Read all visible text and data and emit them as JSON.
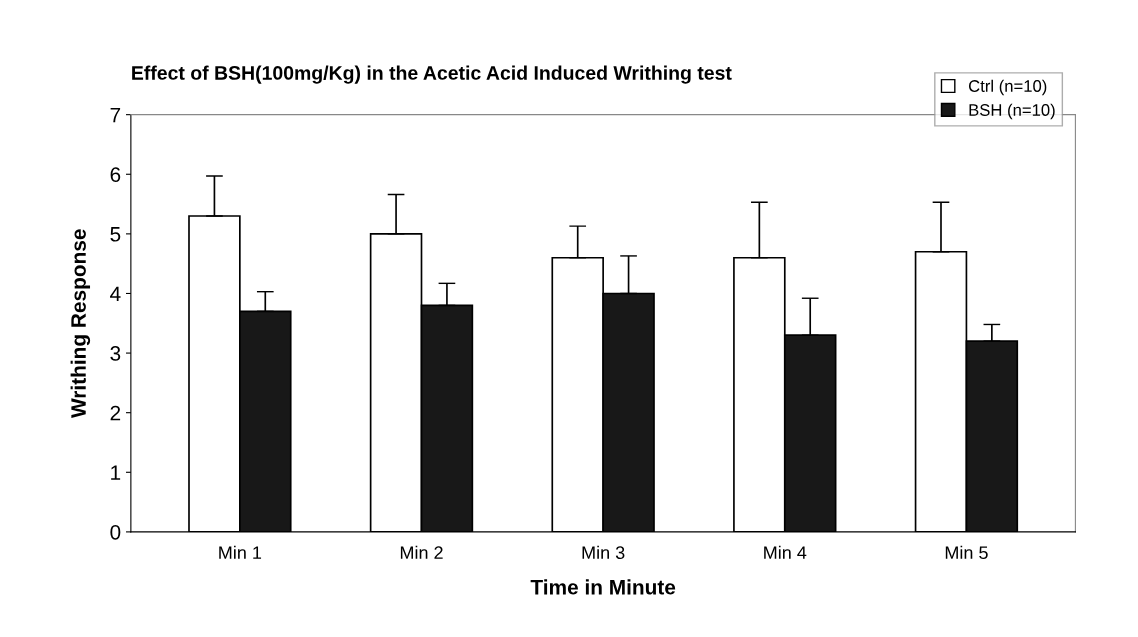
{
  "chart_data": {
    "type": "bar",
    "title": "Effect of BSH(100mg/Kg) in the Acetic Acid Induced Writhing test",
    "xlabel": "Time in Minute",
    "ylabel": "Writhing Response",
    "categories": [
      "Min 1",
      "Min 2",
      "Min 3",
      "Min 4",
      "Min 5"
    ],
    "series": [
      {
        "name": "Ctrl (n=10)",
        "color": "#ffffff",
        "values": [
          5.3,
          5.0,
          4.6,
          4.6,
          4.7
        ],
        "errors": [
          [
            5.3,
            5.97
          ],
          [
            5.0,
            5.66
          ],
          [
            4.6,
            5.13
          ],
          [
            4.6,
            5.53
          ],
          [
            4.7,
            5.53
          ]
        ]
      },
      {
        "name": "BSH (n=10)",
        "color": "#181818",
        "values": [
          3.7,
          3.8,
          4.0,
          3.3,
          3.2
        ],
        "errors": [
          [
            3.7,
            4.03
          ],
          [
            3.8,
            4.17
          ],
          [
            4.0,
            4.63
          ],
          [
            3.3,
            3.92
          ],
          [
            3.2,
            3.48
          ]
        ]
      }
    ],
    "ylim": [
      0,
      7
    ],
    "yticks": [
      0,
      1,
      2,
      3,
      4,
      5,
      6,
      7
    ],
    "grid": false,
    "legend": "top right"
  }
}
